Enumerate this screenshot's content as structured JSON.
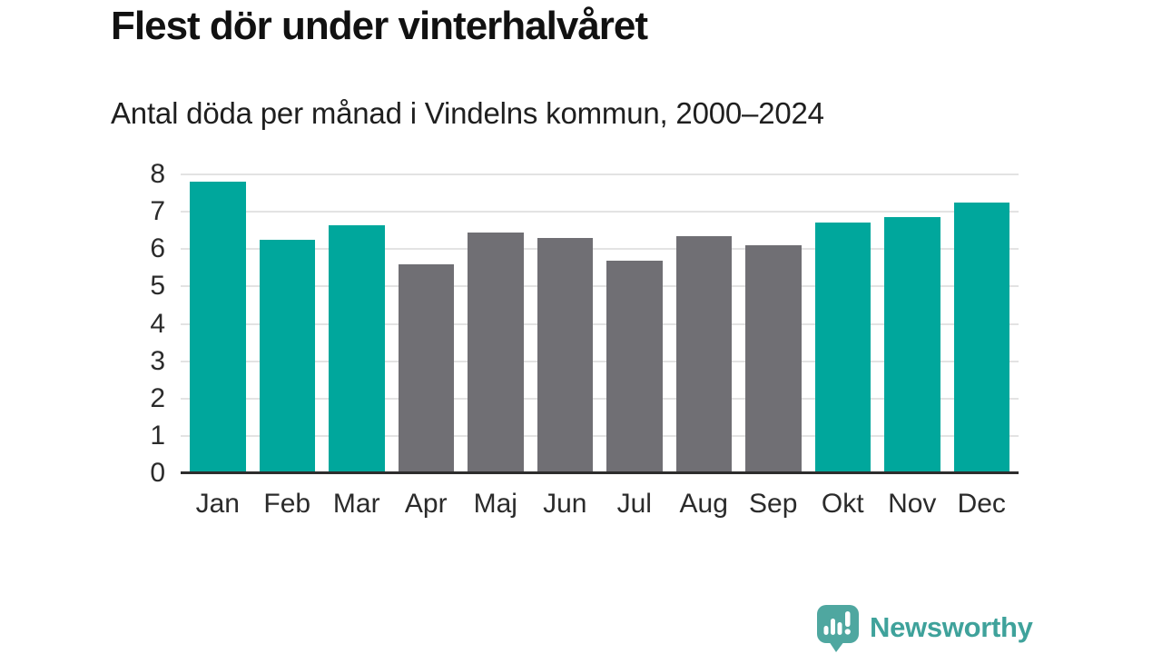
{
  "chart_data": {
    "type": "bar",
    "title": "Flest dör under vinterhalvåret",
    "subtitle": "Antal döda per månad i Vindelns kommun, 2000–2024",
    "categories": [
      "Jan",
      "Feb",
      "Mar",
      "Apr",
      "Maj",
      "Jun",
      "Jul",
      "Aug",
      "Sep",
      "Okt",
      "Nov",
      "Dec"
    ],
    "values": [
      7.8,
      6.25,
      6.65,
      5.6,
      6.45,
      6.3,
      5.7,
      6.35,
      6.1,
      6.7,
      6.85,
      7.25
    ],
    "bar_groups": [
      "winter",
      "winter",
      "winter",
      "summer",
      "summer",
      "summer",
      "summer",
      "summer",
      "summer",
      "winter",
      "winter",
      "winter"
    ],
    "xlabel": "",
    "ylabel": "",
    "ylim": [
      0,
      8
    ],
    "yticks": [
      0,
      1,
      2,
      3,
      4,
      5,
      6,
      7,
      8
    ],
    "grid": "horizontal",
    "legend": "none"
  },
  "colors": {
    "winter_bar": "#00a79c",
    "summer_bar": "#706f74",
    "gridline": "#e3e3e3",
    "axis_line": "#2d2d2d",
    "title_text": "#111111",
    "logo": "#4fa7a0",
    "brand_text": "#3fa29b"
  },
  "footer": {
    "brand": "Newsworthy"
  }
}
